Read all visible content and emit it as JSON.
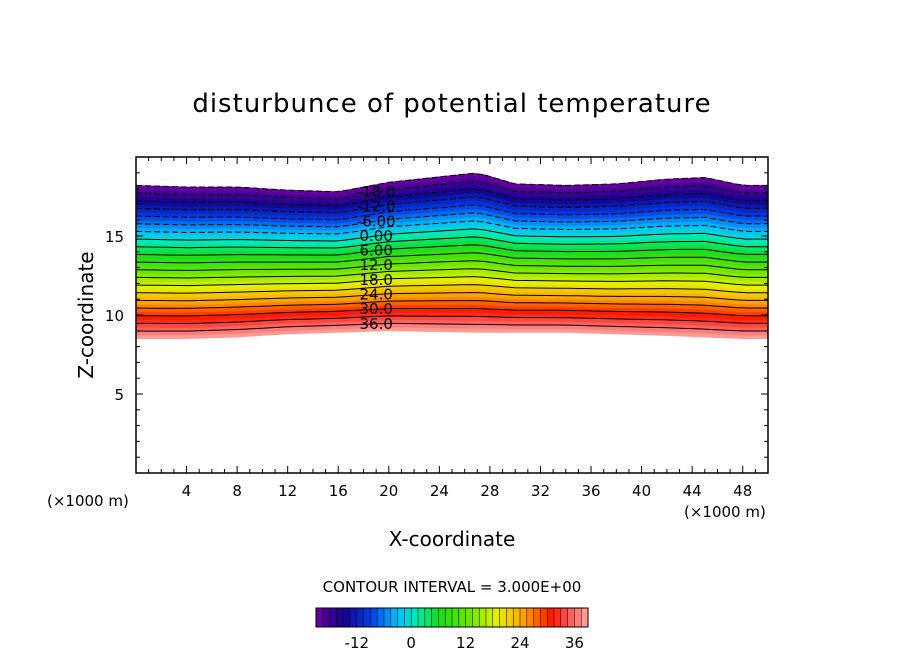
{
  "chart_data": {
    "type": "contour",
    "title": "disturbunce of potential temperature",
    "xlabel": "X-coordinate",
    "ylabel": "Z-coordinate",
    "x_unit": "(×1000 m)",
    "y_unit": "(×1000 m)",
    "xlim": [
      0,
      50
    ],
    "ylim": [
      0,
      20
    ],
    "xticks": [
      "4",
      "8",
      "12",
      "16",
      "20",
      "24",
      "28",
      "32",
      "36",
      "40",
      "44",
      "48"
    ],
    "yticks": [
      "5",
      "10",
      "15"
    ],
    "contour_interval_label": "CONTOUR INTERVAL = 3.000E+00",
    "contour_interval": 3.0,
    "contour_labels": [
      "-18.0",
      "-12.0",
      "-6.00",
      "0.00",
      "6.00",
      "12.0",
      "18.0",
      "24.0",
      "30.0",
      "36.0"
    ],
    "contour_label_x": 19,
    "value_range": [
      -21,
      39
    ],
    "bottom_boundary_z": [
      8.5,
      8.5,
      8.6,
      8.8,
      8.9,
      9.0,
      8.9,
      8.9,
      8.9,
      8.8,
      8.7,
      8.6,
      8.5,
      8.5
    ],
    "top_boundary_z": [
      18.2,
      18.1,
      18.1,
      17.9,
      17.8,
      18.4,
      19.0,
      18.3,
      18.2,
      18.3,
      18.6,
      18.7,
      18.2,
      18.2
    ],
    "boundary_x": [
      0,
      4,
      8,
      12,
      16,
      20,
      27,
      30,
      34,
      38,
      42,
      45,
      48,
      50
    ],
    "colorbar": {
      "ticks": [
        "-12",
        "0",
        "12",
        "24",
        "36"
      ],
      "tick_values": [
        -12,
        0,
        12,
        24,
        36
      ]
    },
    "grid": false,
    "legend": "colorbar-bottom"
  }
}
